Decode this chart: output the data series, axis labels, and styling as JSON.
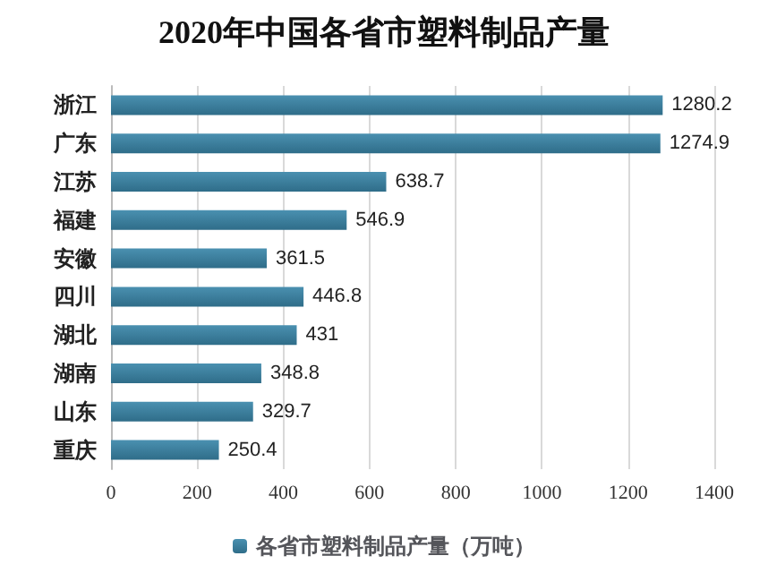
{
  "chart_data": {
    "type": "bar",
    "orientation": "horizontal",
    "title": "2020年中国各省市塑料制品产量",
    "categories": [
      "浙江",
      "广东",
      "江苏",
      "福建",
      "安徽",
      "四川",
      "湖北",
      "湖南",
      "山东",
      "重庆"
    ],
    "series": [
      {
        "name": "各省市塑料制品产量（万吨）",
        "color": "#4a90b0",
        "values": [
          1280.2,
          1274.9,
          638.7,
          546.9,
          361.5,
          446.8,
          431,
          348.8,
          329.7,
          250.4
        ]
      }
    ],
    "data_labels": true,
    "xlim": [
      0,
      1400
    ],
    "xticks": [
      0,
      200,
      400,
      600,
      800,
      1000,
      1200,
      1400
    ],
    "grid": "x",
    "legend": "bottom"
  }
}
